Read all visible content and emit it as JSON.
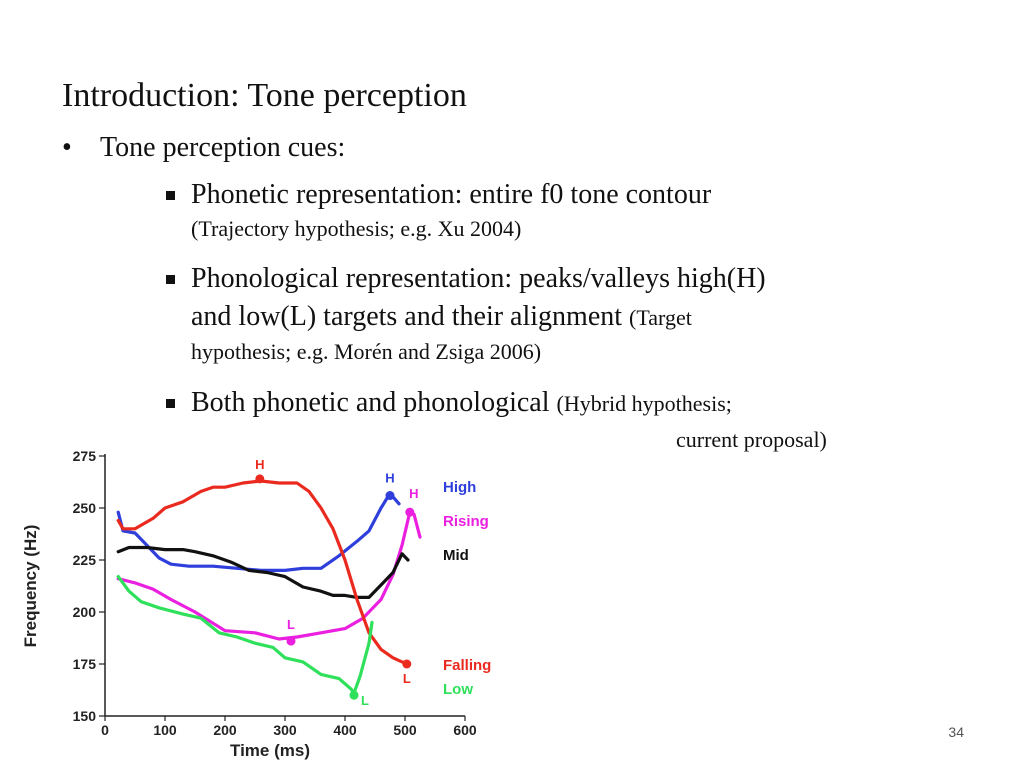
{
  "slide": {
    "title": "Introduction: Tone perception",
    "bullet_marker": "•",
    "bullet": "Tone perception cues:",
    "sub1": {
      "main": "Phonetic representation: entire f0 tone contour",
      "note": "(Trajectory hypothesis; e.g. Xu 2004)"
    },
    "sub2": {
      "line1": "Phonological representation: peaks/valleys high(H)",
      "line2_main": "and low(L) targets and their alignment",
      "line2_note": "(Target",
      "line3_note": "hypothesis; e.g. Morén and Zsiga 2006)"
    },
    "sub3": {
      "main": "Both phonetic and phonological",
      "note1": "(Hybrid hypothesis;",
      "note2": "current proposal)"
    },
    "page_number": "34"
  },
  "chart_data": {
    "type": "line",
    "xlabel": "Time (ms)",
    "ylabel": "Frequency (Hz)",
    "xlim": [
      0,
      600
    ],
    "ylim": [
      150,
      275
    ],
    "xticks": [
      0,
      100,
      200,
      300,
      400,
      500,
      600
    ],
    "yticks": [
      150,
      175,
      200,
      225,
      250,
      275
    ],
    "grid": false,
    "legend": "right",
    "series": [
      {
        "name": "High",
        "color": "#2f3fdc",
        "points": [
          [
            22,
            248
          ],
          [
            30,
            239
          ],
          [
            50,
            238
          ],
          [
            70,
            232
          ],
          [
            90,
            226
          ],
          [
            110,
            223
          ],
          [
            140,
            222
          ],
          [
            180,
            222
          ],
          [
            220,
            221
          ],
          [
            260,
            220
          ],
          [
            300,
            220
          ],
          [
            330,
            221
          ],
          [
            360,
            221
          ],
          [
            390,
            227
          ],
          [
            420,
            234
          ],
          [
            440,
            239
          ],
          [
            460,
            250
          ],
          [
            475,
            257
          ],
          [
            490,
            252
          ]
        ],
        "markers": [
          {
            "x": 475,
            "y": 256,
            "label": "H"
          }
        ]
      },
      {
        "name": "Rising",
        "color": "#ea1fe0",
        "points": [
          [
            22,
            216
          ],
          [
            50,
            214
          ],
          [
            80,
            211
          ],
          [
            110,
            206
          ],
          [
            150,
            200
          ],
          [
            200,
            191
          ],
          [
            250,
            190
          ],
          [
            290,
            187
          ],
          [
            320,
            188
          ],
          [
            360,
            190
          ],
          [
            400,
            192
          ],
          [
            430,
            197
          ],
          [
            460,
            206
          ],
          [
            480,
            218
          ],
          [
            495,
            232
          ],
          [
            508,
            248
          ],
          [
            515,
            247
          ],
          [
            525,
            236
          ]
        ],
        "markers": [
          {
            "x": 310,
            "y": 186,
            "label": "L"
          },
          {
            "x": 508,
            "y": 248,
            "label": "H"
          }
        ]
      },
      {
        "name": "Mid",
        "color": "#111111",
        "points": [
          [
            22,
            229
          ],
          [
            40,
            231
          ],
          [
            70,
            231
          ],
          [
            100,
            230
          ],
          [
            130,
            230
          ],
          [
            150,
            229
          ],
          [
            180,
            227
          ],
          [
            210,
            224
          ],
          [
            240,
            220
          ],
          [
            270,
            219
          ],
          [
            300,
            217
          ],
          [
            330,
            212
          ],
          [
            360,
            210
          ],
          [
            380,
            208
          ],
          [
            400,
            208
          ],
          [
            420,
            207
          ],
          [
            440,
            207
          ],
          [
            460,
            213
          ],
          [
            480,
            219
          ],
          [
            495,
            228
          ],
          [
            505,
            225
          ]
        ],
        "markers": []
      },
      {
        "name": "Falling",
        "color": "#ea2a1f",
        "points": [
          [
            22,
            244
          ],
          [
            30,
            240
          ],
          [
            50,
            240
          ],
          [
            80,
            245
          ],
          [
            100,
            250
          ],
          [
            130,
            253
          ],
          [
            160,
            258
          ],
          [
            180,
            260
          ],
          [
            200,
            260
          ],
          [
            230,
            262
          ],
          [
            260,
            263
          ],
          [
            290,
            262
          ],
          [
            320,
            262
          ],
          [
            340,
            258
          ],
          [
            360,
            250
          ],
          [
            380,
            240
          ],
          [
            400,
            225
          ],
          [
            420,
            206
          ],
          [
            440,
            190
          ],
          [
            460,
            182
          ],
          [
            480,
            178
          ],
          [
            495,
            176
          ],
          [
            505,
            175
          ]
        ],
        "markers": [
          {
            "x": 258,
            "y": 264,
            "label": "H"
          },
          {
            "x": 503,
            "y": 175,
            "label": "L"
          }
        ]
      },
      {
        "name": "Low",
        "color": "#2fe05a",
        "points": [
          [
            22,
            217
          ],
          [
            40,
            210
          ],
          [
            60,
            205
          ],
          [
            90,
            202
          ],
          [
            130,
            199
          ],
          [
            160,
            197
          ],
          [
            190,
            190
          ],
          [
            220,
            188
          ],
          [
            250,
            185
          ],
          [
            280,
            183
          ],
          [
            300,
            178
          ],
          [
            330,
            176
          ],
          [
            360,
            170
          ],
          [
            390,
            168
          ],
          [
            410,
            163
          ],
          [
            415,
            161
          ],
          [
            425,
            169
          ],
          [
            440,
            185
          ],
          [
            445,
            195
          ]
        ],
        "markers": [
          {
            "x": 415,
            "y": 160,
            "label": "L"
          }
        ]
      }
    ]
  }
}
